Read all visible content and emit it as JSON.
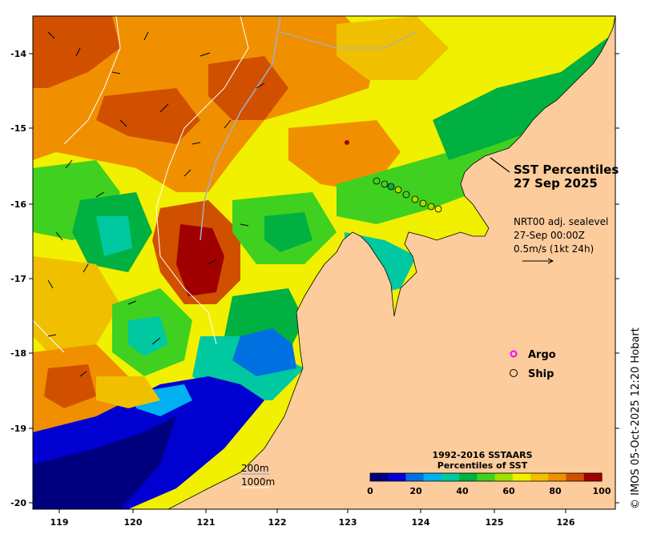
{
  "title": {
    "line1": "SST Percentiles",
    "line2": "27 Sep 2025"
  },
  "current_info": {
    "line1": "NRT00 adj. sealevel",
    "line2": "27-Sep 00:00Z",
    "line3": "0.5m/s (1kt 24h)"
  },
  "legend": {
    "argo_label": "Argo",
    "ship_label": "Ship",
    "argo_color": "#ff00ff"
  },
  "isobaths": {
    "label_200": "200m",
    "label_1000": "1000m"
  },
  "colorbar": {
    "title1": "1992-2016 SSTAARS",
    "title2": "Percentiles of SST",
    "ticks": [
      "0",
      "20",
      "40",
      "60",
      "80",
      "100"
    ],
    "colors": [
      "#00007f",
      "#0000d0",
      "#0070e0",
      "#00b0f0",
      "#00c8a0",
      "#00b040",
      "#40d020",
      "#a0e000",
      "#f0f000",
      "#f0c000",
      "#f09000",
      "#d05000",
      "#a00000"
    ]
  },
  "axes": {
    "x_ticks": [
      "119",
      "120",
      "121",
      "122",
      "123",
      "124",
      "125",
      "126"
    ],
    "y_ticks": [
      "-14",
      "-15",
      "-16",
      "-17",
      "-18",
      "-19",
      "-20"
    ]
  },
  "credit": "© IMOS 05-Oct-2025 12:20 Hobart",
  "colors": {
    "land": "#fccc9c",
    "ocean_warm": "#f09000",
    "ocean_hot": "#a00000"
  }
}
